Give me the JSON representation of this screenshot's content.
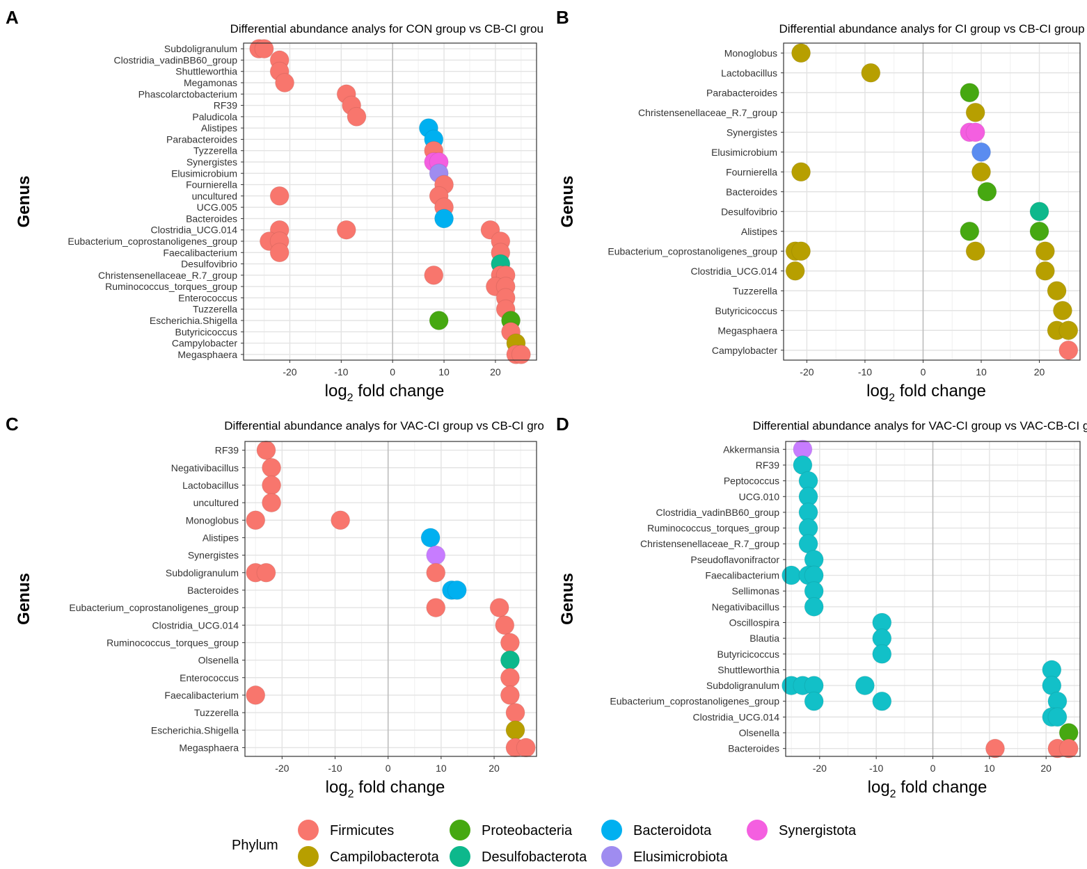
{
  "colors": {
    "Firmicutes": "#F8766D",
    "Campilobacterota": "#B79F00",
    "Proteobacteria": "#46A811",
    "Desulfobacterota": "#0DB88C",
    "Bacteroidota": "#00B0F0",
    "Elusimicrobiota": "#9F8CF0",
    "Synergistota": "#F45FE0",
    "cyan": "#12C0C8",
    "violet": "#C77CFF",
    "blue": "#5A8CF0"
  },
  "legend": {
    "title": "Phylum",
    "items": [
      {
        "label": "Firmicutes",
        "color": "Firmicutes"
      },
      {
        "label": "Campilobacterota",
        "color": "Campilobacterota"
      },
      {
        "label": "Proteobacteria",
        "color": "Proteobacteria"
      },
      {
        "label": "Desulfobacterota",
        "color": "Desulfobacterota"
      },
      {
        "label": "Bacteroidota",
        "color": "Bacteroidota"
      },
      {
        "label": "Elusimicrobiota",
        "color": "Elusimicrobiota"
      },
      {
        "label": "Synergistota",
        "color": "Synergistota"
      }
    ]
  },
  "chart_data": [
    {
      "type": "scatter",
      "panel": "A",
      "title": "Differential abundance analys for CON group vs CB-CI group",
      "xlabel": "log2 fold change",
      "ylabel": "Genus",
      "xlim": [
        -29,
        28
      ],
      "xticks": [
        -20,
        -10,
        0,
        10,
        20
      ],
      "categories": [
        "Subdoligranulum",
        "Clostridia_vadinBB60_group",
        "Shuttleworthia",
        "Megamonas",
        "Phascolarctobacterium",
        "RF39",
        "Paludicola",
        "Alistipes",
        "Parabacteroides",
        "Tyzzerella",
        "Synergistes",
        "Elusimicrobium",
        "Fournierella",
        "uncultured",
        "UCG.005",
        "Bacteroides",
        "Clostridia_UCG.014",
        "Eubacterium_coprostanoligenes_group",
        "Faecalibacterium",
        "Desulfovibrio",
        "Christensenellaceae_R.7_group",
        "Ruminococcus_torques_group",
        "Enterococcus",
        "Tuzzerella",
        "Escherichia.Shigella",
        "Butyricicoccus",
        "Campylobacter",
        "Megasphaera"
      ],
      "points": [
        {
          "genus": "Subdoligranulum",
          "x": -26,
          "phylum": "Firmicutes"
        },
        {
          "genus": "Subdoligranulum",
          "x": -25,
          "phylum": "Firmicutes"
        },
        {
          "genus": "Clostridia_vadinBB60_group",
          "x": -22,
          "phylum": "Firmicutes"
        },
        {
          "genus": "Shuttleworthia",
          "x": -22,
          "phylum": "Firmicutes"
        },
        {
          "genus": "Megamonas",
          "x": -21,
          "phylum": "Firmicutes"
        },
        {
          "genus": "Phascolarctobacterium",
          "x": -9,
          "phylum": "Firmicutes"
        },
        {
          "genus": "RF39",
          "x": -8,
          "phylum": "Firmicutes"
        },
        {
          "genus": "Paludicola",
          "x": -7,
          "phylum": "Firmicutes"
        },
        {
          "genus": "Alistipes",
          "x": 7,
          "phylum": "Bacteroidota"
        },
        {
          "genus": "Parabacteroides",
          "x": 8,
          "phylum": "Bacteroidota"
        },
        {
          "genus": "Tyzzerella",
          "x": 8,
          "phylum": "Firmicutes"
        },
        {
          "genus": "Synergistes",
          "x": 8,
          "phylum": "Synergistota"
        },
        {
          "genus": "Synergistes",
          "x": 9,
          "phylum": "Synergistota"
        },
        {
          "genus": "Elusimicrobium",
          "x": 9,
          "phylum": "Elusimicrobiota"
        },
        {
          "genus": "Fournierella",
          "x": 10,
          "phylum": "Firmicutes"
        },
        {
          "genus": "uncultured",
          "x": -22,
          "phylum": "Firmicutes"
        },
        {
          "genus": "uncultured",
          "x": 9,
          "phylum": "Firmicutes"
        },
        {
          "genus": "UCG.005",
          "x": 10,
          "phylum": "Firmicutes"
        },
        {
          "genus": "Bacteroides",
          "x": 10,
          "phylum": "Bacteroidota"
        },
        {
          "genus": "Clostridia_UCG.014",
          "x": -22,
          "phylum": "Firmicutes"
        },
        {
          "genus": "Clostridia_UCG.014",
          "x": -9,
          "phylum": "Firmicutes"
        },
        {
          "genus": "Clostridia_UCG.014",
          "x": 19,
          "phylum": "Firmicutes"
        },
        {
          "genus": "Eubacterium_coprostanoligenes_group",
          "x": -24,
          "phylum": "Firmicutes"
        },
        {
          "genus": "Eubacterium_coprostanoligenes_group",
          "x": -22,
          "phylum": "Firmicutes"
        },
        {
          "genus": "Eubacterium_coprostanoligenes_group",
          "x": 21,
          "phylum": "Firmicutes"
        },
        {
          "genus": "Faecalibacterium",
          "x": -22,
          "phylum": "Firmicutes"
        },
        {
          "genus": "Faecalibacterium",
          "x": 21,
          "phylum": "Firmicutes"
        },
        {
          "genus": "Desulfovibrio",
          "x": 21,
          "phylum": "Desulfobacterota"
        },
        {
          "genus": "Christensenellaceae_R.7_group",
          "x": 8,
          "phylum": "Firmicutes"
        },
        {
          "genus": "Christensenellaceae_R.7_group",
          "x": 21,
          "phylum": "Firmicutes"
        },
        {
          "genus": "Christensenellaceae_R.7_group",
          "x": 22,
          "phylum": "Firmicutes"
        },
        {
          "genus": "Ruminococcus_torques_group",
          "x": 20,
          "phylum": "Firmicutes"
        },
        {
          "genus": "Ruminococcus_torques_group",
          "x": 22,
          "phylum": "Firmicutes"
        },
        {
          "genus": "Enterococcus",
          "x": 22,
          "phylum": "Firmicutes"
        },
        {
          "genus": "Tuzzerella",
          "x": 22,
          "phylum": "Firmicutes"
        },
        {
          "genus": "Escherichia.Shigella",
          "x": 9,
          "phylum": "Proteobacteria"
        },
        {
          "genus": "Escherichia.Shigella",
          "x": 23,
          "phylum": "Proteobacteria"
        },
        {
          "genus": "Butyricicoccus",
          "x": 23,
          "phylum": "Firmicutes"
        },
        {
          "genus": "Campylobacter",
          "x": 24,
          "phylum": "Campilobacterota"
        },
        {
          "genus": "Megasphaera",
          "x": 24,
          "phylum": "Firmicutes"
        },
        {
          "genus": "Megasphaera",
          "x": 25,
          "phylum": "Firmicutes"
        }
      ]
    },
    {
      "type": "scatter",
      "panel": "B",
      "title": "Differential abundance analys for CI group vs CB-CI group",
      "xlabel": "log2 fold change",
      "ylabel": "Genus",
      "xlim": [
        -24,
        27
      ],
      "xticks": [
        -20,
        -10,
        0,
        10,
        20
      ],
      "categories": [
        "Monoglobus",
        "Lactobacillus",
        "Parabacteroides",
        "Christensenellaceae_R.7_group",
        "Synergistes",
        "Elusimicrobium",
        "Fournierella",
        "Bacteroides",
        "Desulfovibrio",
        "Alistipes",
        "Eubacterium_coprostanoligenes_group",
        "Clostridia_UCG.014",
        "Tuzzerella",
        "Butyricicoccus",
        "Megasphaera",
        "Campylobacter"
      ],
      "points": [
        {
          "genus": "Monoglobus",
          "x": -21,
          "phylum": "Campilobacterota"
        },
        {
          "genus": "Lactobacillus",
          "x": -9,
          "phylum": "Campilobacterota"
        },
        {
          "genus": "Parabacteroides",
          "x": 8,
          "phylum": "Proteobacteria"
        },
        {
          "genus": "Christensenellaceae_R.7_group",
          "x": 9,
          "phylum": "Campilobacterota"
        },
        {
          "genus": "Synergistes",
          "x": 8,
          "phylum": "Synergistota"
        },
        {
          "genus": "Synergistes",
          "x": 9,
          "phylum": "Synergistota"
        },
        {
          "genus": "Elusimicrobium",
          "x": 10,
          "phylum": "blue"
        },
        {
          "genus": "Fournierella",
          "x": -21,
          "phylum": "Campilobacterota"
        },
        {
          "genus": "Fournierella",
          "x": 10,
          "phylum": "Campilobacterota"
        },
        {
          "genus": "Bacteroides",
          "x": 11,
          "phylum": "Proteobacteria"
        },
        {
          "genus": "Desulfovibrio",
          "x": 20,
          "phylum": "Desulfobacterota"
        },
        {
          "genus": "Alistipes",
          "x": 8,
          "phylum": "Proteobacteria"
        },
        {
          "genus": "Alistipes",
          "x": 20,
          "phylum": "Proteobacteria"
        },
        {
          "genus": "Eubacterium_coprostanoligenes_group",
          "x": -22,
          "phylum": "Campilobacterota"
        },
        {
          "genus": "Eubacterium_coprostanoligenes_group",
          "x": -21,
          "phylum": "Campilobacterota"
        },
        {
          "genus": "Eubacterium_coprostanoligenes_group",
          "x": 9,
          "phylum": "Campilobacterota"
        },
        {
          "genus": "Eubacterium_coprostanoligenes_group",
          "x": 21,
          "phylum": "Campilobacterota"
        },
        {
          "genus": "Clostridia_UCG.014",
          "x": -22,
          "phylum": "Campilobacterota"
        },
        {
          "genus": "Clostridia_UCG.014",
          "x": 21,
          "phylum": "Campilobacterota"
        },
        {
          "genus": "Tuzzerella",
          "x": 23,
          "phylum": "Campilobacterota"
        },
        {
          "genus": "Butyricicoccus",
          "x": 24,
          "phylum": "Campilobacterota"
        },
        {
          "genus": "Megasphaera",
          "x": 23,
          "phylum": "Campilobacterota"
        },
        {
          "genus": "Megasphaera",
          "x": 25,
          "phylum": "Campilobacterota"
        },
        {
          "genus": "Campylobacter",
          "x": 25,
          "phylum": "Firmicutes"
        }
      ]
    },
    {
      "type": "scatter",
      "panel": "C",
      "title": "Differential abundance analys for VAC-CI group vs CB-CI group",
      "xlabel": "log2 fold change",
      "ylabel": "Genus",
      "xlim": [
        -27,
        28
      ],
      "xticks": [
        -20,
        -10,
        0,
        10,
        20
      ],
      "categories": [
        "RF39",
        "Negativibacillus",
        "Lactobacillus",
        "uncultured",
        "Monoglobus",
        "Alistipes",
        "Synergistes",
        "Subdoligranulum",
        "Bacteroides",
        "Eubacterium_coprostanoligenes_group",
        "Clostridia_UCG.014",
        "Ruminococcus_torques_group",
        "Olsenella",
        "Enterococcus",
        "Faecalibacterium",
        "Tuzzerella",
        "Escherichia.Shigella",
        "Megasphaera"
      ],
      "points": [
        {
          "genus": "RF39",
          "x": -23,
          "phylum": "Firmicutes"
        },
        {
          "genus": "Negativibacillus",
          "x": -22,
          "phylum": "Firmicutes"
        },
        {
          "genus": "Lactobacillus",
          "x": -22,
          "phylum": "Firmicutes"
        },
        {
          "genus": "uncultured",
          "x": -22,
          "phylum": "Firmicutes"
        },
        {
          "genus": "Monoglobus",
          "x": -25,
          "phylum": "Firmicutes"
        },
        {
          "genus": "Monoglobus",
          "x": -9,
          "phylum": "Firmicutes"
        },
        {
          "genus": "Alistipes",
          "x": 8,
          "phylum": "Bacteroidota"
        },
        {
          "genus": "Synergistes",
          "x": 9,
          "phylum": "violet"
        },
        {
          "genus": "Subdoligranulum",
          "x": -25,
          "phylum": "Firmicutes"
        },
        {
          "genus": "Subdoligranulum",
          "x": -23,
          "phylum": "Firmicutes"
        },
        {
          "genus": "Subdoligranulum",
          "x": 9,
          "phylum": "Firmicutes"
        },
        {
          "genus": "Bacteroides",
          "x": 12,
          "phylum": "Bacteroidota"
        },
        {
          "genus": "Bacteroides",
          "x": 13,
          "phylum": "Bacteroidota"
        },
        {
          "genus": "Eubacterium_coprostanoligenes_group",
          "x": 9,
          "phylum": "Firmicutes"
        },
        {
          "genus": "Eubacterium_coprostanoligenes_group",
          "x": 21,
          "phylum": "Firmicutes"
        },
        {
          "genus": "Clostridia_UCG.014",
          "x": 22,
          "phylum": "Firmicutes"
        },
        {
          "genus": "Ruminococcus_torques_group",
          "x": 23,
          "phylum": "Firmicutes"
        },
        {
          "genus": "Olsenella",
          "x": 23,
          "phylum": "Desulfobacterota"
        },
        {
          "genus": "Enterococcus",
          "x": 23,
          "phylum": "Firmicutes"
        },
        {
          "genus": "Faecalibacterium",
          "x": -25,
          "phylum": "Firmicutes"
        },
        {
          "genus": "Faecalibacterium",
          "x": 23,
          "phylum": "Firmicutes"
        },
        {
          "genus": "Tuzzerella",
          "x": 24,
          "phylum": "Firmicutes"
        },
        {
          "genus": "Escherichia.Shigella",
          "x": 24,
          "phylum": "Campilobacterota"
        },
        {
          "genus": "Megasphaera",
          "x": 24,
          "phylum": "Firmicutes"
        },
        {
          "genus": "Megasphaera",
          "x": 26,
          "phylum": "Firmicutes"
        }
      ]
    },
    {
      "type": "scatter",
      "panel": "D",
      "title": "Differential abundance analys for VAC-CI group vs VAC-CB-CI group",
      "xlabel": "log2 fold change",
      "ylabel": "Genus",
      "xlim": [
        -26,
        26
      ],
      "xticks": [
        -20,
        -10,
        0,
        10,
        20
      ],
      "categories": [
        "Akkermansia",
        "RF39",
        "Peptococcus",
        "UCG.010",
        "Clostridia_vadinBB60_group",
        "Ruminococcus_torques_group",
        "Christensenellaceae_R.7_group",
        "Pseudoflavonifractor",
        "Faecalibacterium",
        "Sellimonas",
        "Negativibacillus",
        "Oscillospira",
        "Blautia",
        "Butyricicoccus",
        "Shuttleworthia",
        "Subdoligranulum",
        "Eubacterium_coprostanoligenes_group",
        "Clostridia_UCG.014",
        "Olsenella",
        "Bacteroides"
      ],
      "points": [
        {
          "genus": "Akkermansia",
          "x": -23,
          "phylum": "violet"
        },
        {
          "genus": "RF39",
          "x": -23,
          "phylum": "cyan"
        },
        {
          "genus": "Peptococcus",
          "x": -22,
          "phylum": "cyan"
        },
        {
          "genus": "UCG.010",
          "x": -22,
          "phylum": "cyan"
        },
        {
          "genus": "Clostridia_vadinBB60_group",
          "x": -22,
          "phylum": "cyan"
        },
        {
          "genus": "Ruminococcus_torques_group",
          "x": -22,
          "phylum": "cyan"
        },
        {
          "genus": "Christensenellaceae_R.7_group",
          "x": -22,
          "phylum": "cyan"
        },
        {
          "genus": "Pseudoflavonifractor",
          "x": -21,
          "phylum": "cyan"
        },
        {
          "genus": "Faecalibacterium",
          "x": -25,
          "phylum": "cyan"
        },
        {
          "genus": "Faecalibacterium",
          "x": -22,
          "phylum": "cyan"
        },
        {
          "genus": "Faecalibacterium",
          "x": -21,
          "phylum": "cyan"
        },
        {
          "genus": "Sellimonas",
          "x": -21,
          "phylum": "cyan"
        },
        {
          "genus": "Negativibacillus",
          "x": -21,
          "phylum": "cyan"
        },
        {
          "genus": "Oscillospira",
          "x": -9,
          "phylum": "cyan"
        },
        {
          "genus": "Blautia",
          "x": -9,
          "phylum": "cyan"
        },
        {
          "genus": "Butyricicoccus",
          "x": -9,
          "phylum": "cyan"
        },
        {
          "genus": "Shuttleworthia",
          "x": 21,
          "phylum": "cyan"
        },
        {
          "genus": "Subdoligranulum",
          "x": -25,
          "phylum": "cyan"
        },
        {
          "genus": "Subdoligranulum",
          "x": -23,
          "phylum": "cyan"
        },
        {
          "genus": "Subdoligranulum",
          "x": -21,
          "phylum": "cyan"
        },
        {
          "genus": "Subdoligranulum",
          "x": -12,
          "phylum": "cyan"
        },
        {
          "genus": "Subdoligranulum",
          "x": 21,
          "phylum": "cyan"
        },
        {
          "genus": "Eubacterium_coprostanoligenes_group",
          "x": -21,
          "phylum": "cyan"
        },
        {
          "genus": "Eubacterium_coprostanoligenes_group",
          "x": -9,
          "phylum": "cyan"
        },
        {
          "genus": "Eubacterium_coprostanoligenes_group",
          "x": 22,
          "phylum": "cyan"
        },
        {
          "genus": "Clostridia_UCG.014",
          "x": 21,
          "phylum": "cyan"
        },
        {
          "genus": "Clostridia_UCG.014",
          "x": 22,
          "phylum": "cyan"
        },
        {
          "genus": "Olsenella",
          "x": 24,
          "phylum": "Proteobacteria"
        },
        {
          "genus": "Bacteroides",
          "x": 11,
          "phylum": "Firmicutes"
        },
        {
          "genus": "Bacteroides",
          "x": 22,
          "phylum": "Firmicutes"
        },
        {
          "genus": "Bacteroides",
          "x": 24,
          "phylum": "Firmicutes"
        }
      ]
    }
  ]
}
